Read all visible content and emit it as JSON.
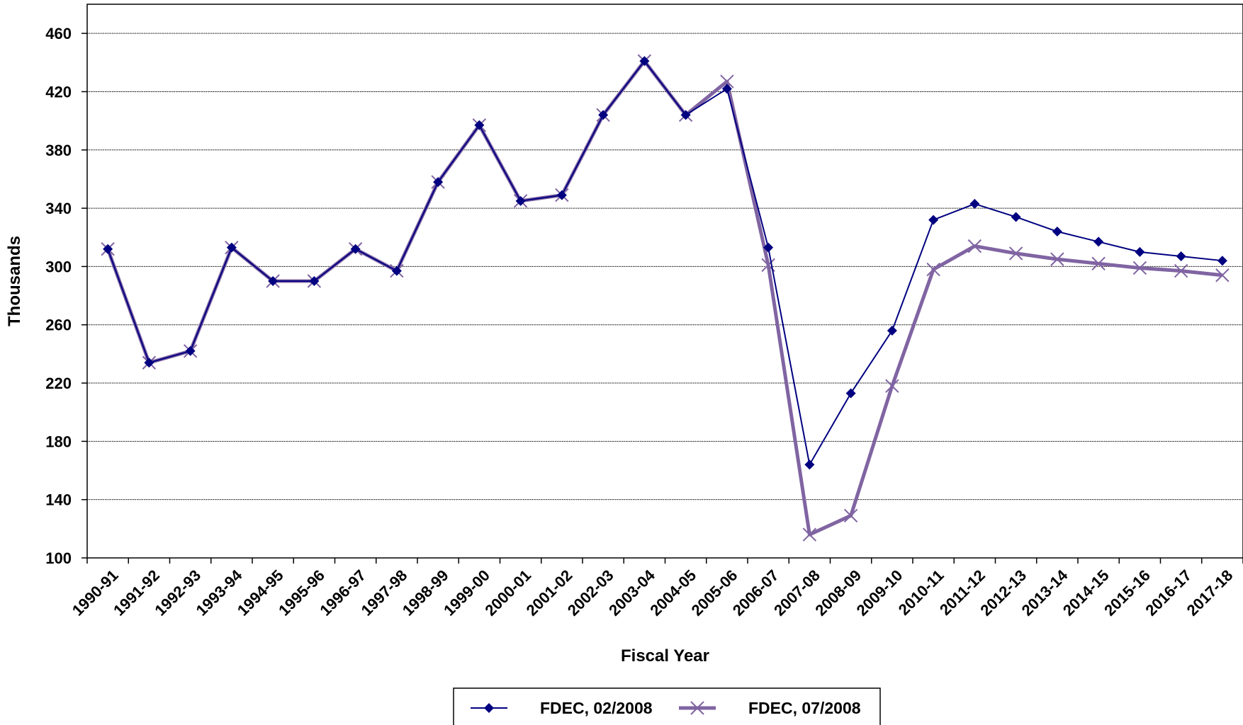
{
  "chart_data": {
    "type": "line",
    "title": "",
    "xlabel": "Fiscal Year",
    "ylabel": "Thousands",
    "ylim": [
      100,
      480
    ],
    "yticks": [
      100,
      140,
      180,
      220,
      260,
      300,
      340,
      380,
      420,
      460
    ],
    "grid": "horizontal",
    "legend_position": "bottom",
    "categories": [
      "1990-91",
      "1991-92",
      "1992-93",
      "1993-94",
      "1994-95",
      "1995-96",
      "1996-97",
      "1997-98",
      "1998-99",
      "1999-00",
      "2000-01",
      "2001-02",
      "2002-03",
      "2003-04",
      "2004-05",
      "2005-06",
      "2006-07",
      "2007-08",
      "2008-09",
      "2009-10",
      "2010-11",
      "2011-12",
      "2012-13",
      "2013-14",
      "2014-15",
      "2015-16",
      "2016-17",
      "2017-18"
    ],
    "series": [
      {
        "name": "FDEC, 02/2008",
        "color": "#000080",
        "marker": "diamond",
        "values": [
          312,
          234,
          242,
          313,
          290,
          290,
          312,
          297,
          358,
          397,
          345,
          349,
          404,
          441,
          404,
          422,
          313,
          164,
          213,
          256,
          332,
          343,
          334,
          324,
          317,
          310,
          307,
          304
        ]
      },
      {
        "name": "FDEC, 07/2008",
        "color": "#8064A2",
        "marker": "x",
        "values": [
          312,
          234,
          242,
          313,
          290,
          290,
          312,
          297,
          358,
          397,
          345,
          349,
          404,
          441,
          404,
          427,
          301,
          116,
          129,
          218,
          298,
          314,
          309,
          305,
          302,
          299,
          297,
          294
        ]
      }
    ]
  }
}
